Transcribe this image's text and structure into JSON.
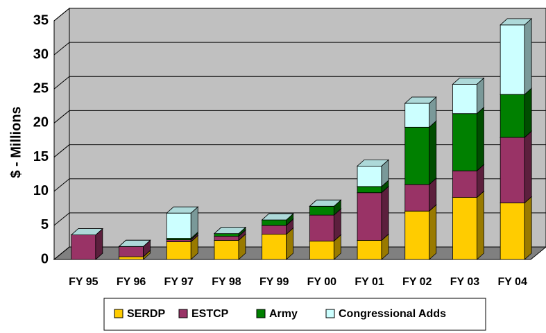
{
  "chart_data": {
    "type": "bar3d_stacked",
    "y_label": "$ - Millions",
    "categories": [
      "FY 95",
      "FY 96",
      "FY 97",
      "FY 98",
      "FY 99",
      "FY 00",
      "FY 01",
      "FY 02",
      "FY 03",
      "FY 04"
    ],
    "series": [
      {
        "name": "SERDP",
        "color": "#ffcc00",
        "values": [
          0,
          0.4,
          2.6,
          2.8,
          3.7,
          2.7,
          2.8,
          7.1,
          9.1,
          8.3
        ]
      },
      {
        "name": "ESTCP",
        "color": "#993366",
        "values": [
          3.6,
          1.5,
          0.3,
          0.6,
          1.3,
          3.8,
          7.0,
          3.9,
          3.9,
          9.6
        ]
      },
      {
        "name": "Army",
        "color": "#008000",
        "values": [
          0,
          0,
          0.2,
          0.4,
          0.8,
          1.3,
          0.9,
          8.4,
          8.4,
          6.3
        ]
      },
      {
        "name": "Congressional Adds",
        "color": "#ccffff",
        "values": [
          0,
          0,
          3.7,
          0,
          0,
          0,
          3.0,
          3.5,
          4.3,
          10.2
        ]
      }
    ],
    "ylim": [
      0,
      35
    ],
    "yticks": [
      0,
      5,
      10,
      15,
      20,
      25,
      30,
      35
    ],
    "grid": true
  }
}
